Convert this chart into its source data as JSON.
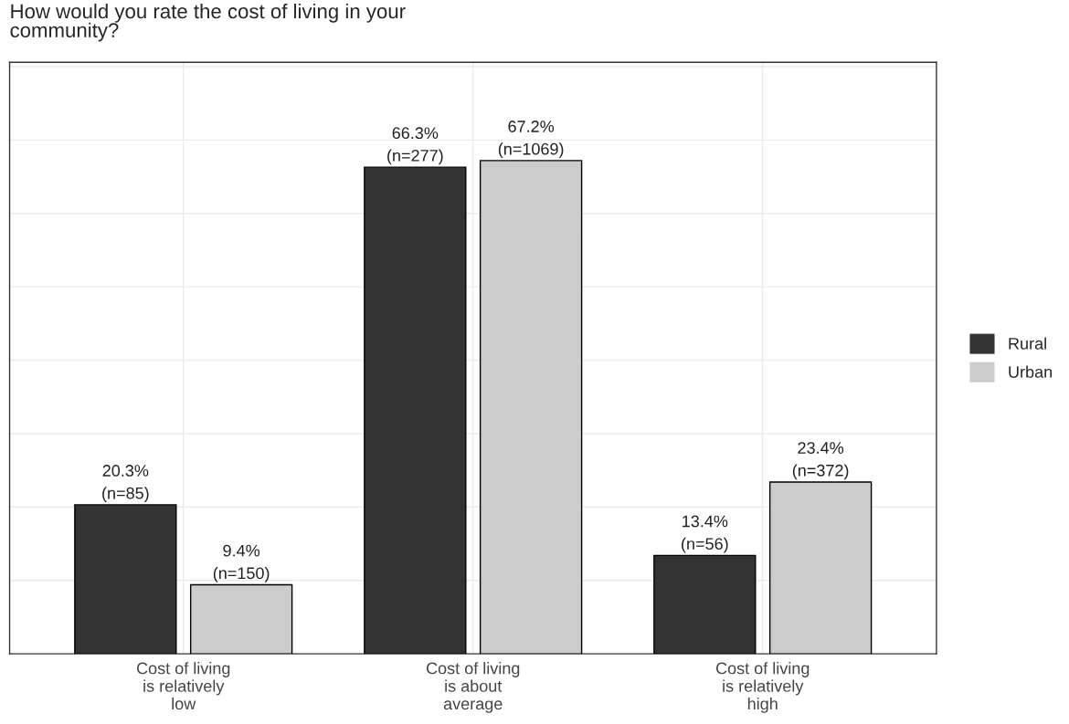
{
  "chart_data": {
    "type": "bar",
    "title": "How would you rate the cost of living in your\ncommunity?",
    "categories": [
      "Cost of living\nis relatively\nlow",
      "Cost of living\nis about\naverage",
      "Cost of living\nis relatively\nhigh"
    ],
    "series": [
      {
        "name": "Rural",
        "color": "#333333",
        "values": [
          20.3,
          66.3,
          13.4
        ],
        "value_labels": [
          "20.3%\n(n=85)",
          "66.3%\n(n=277)",
          "13.4%\n(n=56)"
        ]
      },
      {
        "name": "Urban",
        "color": "#cccccc",
        "values": [
          9.4,
          67.2,
          23.4
        ],
        "value_labels": [
          "9.4%\n(n=150)",
          "67.2%\n(n=1069)",
          "23.4%\n(n=372)"
        ]
      }
    ],
    "ylim": [
      0,
      80.6
    ],
    "yticks": [
      {
        "value": 10,
        "label": null
      },
      {
        "value": 20,
        "label": null
      },
      {
        "value": 30,
        "label": null
      },
      {
        "value": 40,
        "label": null
      },
      {
        "value": 50,
        "label": null
      },
      {
        "value": 60,
        "label": null
      },
      {
        "value": 70,
        "label": null
      },
      {
        "value": 80,
        "label": null
      }
    ],
    "tick_labels": "x",
    "grid": true,
    "legend": "right"
  }
}
